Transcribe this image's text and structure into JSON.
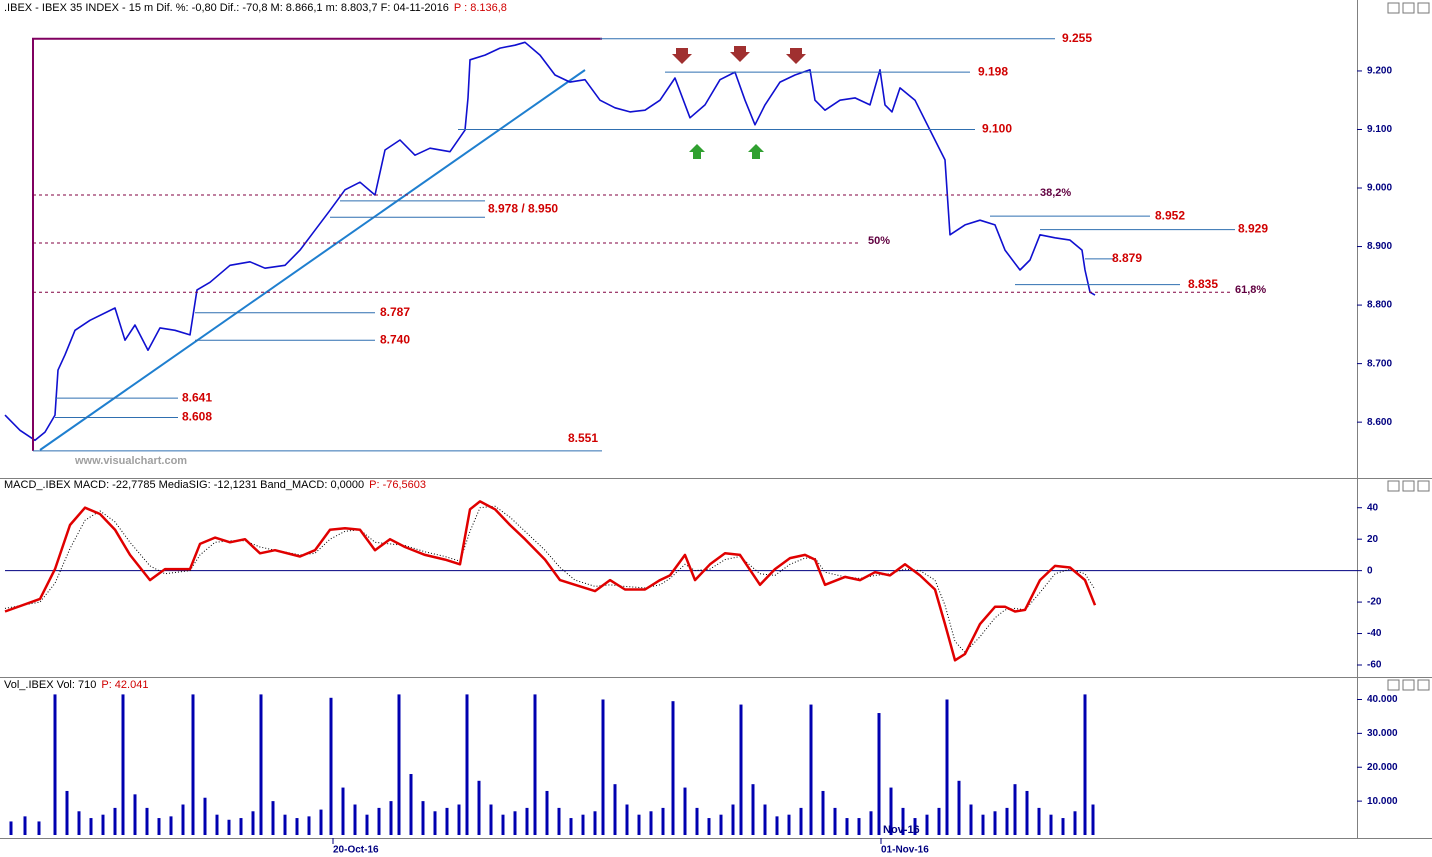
{
  "chart_data": [
    {
      "type": "line",
      "title": ".IBEX - IBEX 35 INDEX - 15 m  Dif. %: -0,80  Dif.: -70,8  M: 8.866,1  m: 8.803,7  F: 04-11-2016",
      "title_price": "P : 8.136,8",
      "watermark": "www.visualchart.com",
      "color": "#1010d0",
      "xlim": [
        0,
        676
      ],
      "ylim": [
        8508,
        9299
      ],
      "yticks": [
        {
          "value": 8600,
          "label": "8.600"
        },
        {
          "value": 8700,
          "label": "8.700"
        },
        {
          "value": 8800,
          "label": "8.800"
        },
        {
          "value": 8900,
          "label": "8.900"
        },
        {
          "value": 9000,
          "label": "9.000"
        },
        {
          "value": 9100,
          "label": "9.100"
        },
        {
          "value": 9200,
          "label": "9.200"
        }
      ],
      "x": [
        0,
        7.5,
        15,
        20,
        25,
        26.5,
        30,
        35,
        42.5,
        55,
        60,
        65,
        71.5,
        77.5,
        85,
        92.5,
        96,
        102.5,
        112.5,
        122.5,
        130,
        140,
        147.5,
        155,
        162.5,
        170,
        177.5,
        185,
        190,
        197.5,
        205,
        212.5,
        222.5,
        230,
        231.5,
        232.5,
        240,
        247.5,
        255,
        260,
        267.5,
        275,
        282.5,
        290,
        297.5,
        305,
        312.5,
        320,
        327.5,
        335,
        342.5,
        350,
        357.5,
        365,
        370,
        375,
        380,
        387.5,
        395,
        402.5,
        405,
        410,
        417.5,
        425,
        432.5,
        437.5,
        440,
        443.5,
        447.5,
        455,
        462.5,
        470,
        471.5,
        472.5,
        480,
        487.5,
        495,
        500,
        507.5,
        512.5,
        517.5,
        525,
        532.5,
        538.5,
        540,
        542.5,
        545
      ],
      "values": [
        8612,
        8586,
        8569,
        8583,
        8612,
        8689,
        8715,
        8757,
        8774,
        8795,
        8740,
        8766,
        8723,
        8761,
        8757,
        8749,
        8826,
        8839,
        8868,
        8874,
        8863,
        8868,
        8894,
        8928,
        8962,
        8997,
        9010,
        8988,
        9065,
        9082,
        9056,
        9068,
        9062,
        9099,
        9154,
        9219,
        9227,
        9239,
        9244,
        9249,
        9227,
        9193,
        9181,
        9185,
        9150,
        9137,
        9130,
        9133,
        9150,
        9188,
        9120,
        9142,
        9185,
        9198,
        9150,
        9108,
        9142,
        9181,
        9193,
        9202,
        9150,
        9133,
        9150,
        9154,
        9142,
        9202,
        9142,
        9130,
        9171,
        9150,
        9099,
        9048,
        8971,
        8920,
        8937,
        8945,
        8937,
        8894,
        8860,
        8877,
        8920,
        8915,
        8911,
        8894,
        8860,
        8822,
        8817
      ],
      "levels": [
        {
          "label": "9.255",
          "value": 9255
        },
        {
          "label": "9.198",
          "value": 9198
        },
        {
          "label": "9.100",
          "value": 9100
        },
        {
          "label": "8.978 / 8.950",
          "values": [
            8978,
            8950
          ]
        },
        {
          "label": "8.952",
          "value": 8952
        },
        {
          "label": "8.929",
          "value": 8929
        },
        {
          "label": "8.879",
          "value": 8879
        },
        {
          "label": "8.835",
          "value": 8835
        },
        {
          "label": "8.787",
          "value": 8787
        },
        {
          "label": "8.740",
          "value": 8740
        },
        {
          "label": "8.641",
          "value": 8641
        },
        {
          "label": "8.608",
          "value": 8608
        },
        {
          "label": "8.551",
          "value": 8551
        }
      ],
      "retracements": [
        {
          "label": "38,2%",
          "price": 8988
        },
        {
          "label": "50%",
          "price": 8906
        },
        {
          "label": "61,8%",
          "price": 8822
        }
      ]
    },
    {
      "type": "line",
      "title": "MACD_.IBEX MACD: -22,7785 MediaSIG: -12,1231 Band_MACD: 0,0000",
      "title_price": "P: -76,5603",
      "xlim": [
        0,
        676
      ],
      "ylim": [
        -67,
        50
      ],
      "yticks": [
        -60,
        -40,
        -20,
        0,
        20,
        40
      ],
      "zero_line": 0,
      "x": [
        0,
        17.5,
        25,
        32.5,
        40,
        47.5,
        55,
        62.5,
        72.5,
        80,
        92.5,
        97.5,
        105,
        112.5,
        120,
        127.5,
        135,
        147.5,
        155,
        162.5,
        170,
        177.5,
        185,
        192.5,
        200,
        210,
        220,
        227.5,
        232.5,
        237.5,
        245,
        252.5,
        260,
        270,
        277.5,
        285,
        295,
        302.5,
        310,
        320,
        327.5,
        332.5,
        340,
        345,
        352.5,
        360,
        367.5,
        377.5,
        385,
        392.5,
        400,
        405,
        410,
        420,
        427.5,
        435,
        442.5,
        450,
        457.5,
        465,
        470,
        475,
        480,
        487.5,
        495,
        500,
        505,
        510,
        517.5,
        525,
        532.5,
        540,
        545
      ],
      "series": [
        {
          "color": "#e00000",
          "line_style": "solid",
          "values": [
            -26,
            -18,
            1,
            29,
            40,
            36,
            26,
            10,
            -6,
            1,
            1,
            17,
            21,
            18,
            20,
            11,
            13,
            9,
            13,
            26,
            27,
            26,
            13,
            20,
            15,
            10,
            7,
            4,
            39,
            44,
            39,
            29,
            20,
            7,
            -6,
            -9,
            -13,
            -6,
            -12,
            -12,
            -6,
            -3,
            10,
            -6,
            4,
            11,
            10,
            -9,
            1,
            8,
            10,
            7,
            -9,
            -4,
            -6,
            -1,
            -3,
            4,
            -3,
            -12,
            -34,
            -57,
            -53,
            -34,
            -23,
            -23,
            -26,
            -25,
            -6,
            3,
            2,
            -6,
            -22
          ]
        },
        {
          "color": "#000000",
          "line_style": "dotted",
          "values": [
            -24,
            -20,
            -8,
            14,
            32,
            38,
            31,
            18,
            3,
            -2,
            0,
            10,
            18,
            19,
            19,
            15,
            13,
            10,
            11,
            20,
            25,
            26,
            18,
            17,
            16,
            12,
            9,
            6,
            25,
            40,
            41,
            34,
            25,
            13,
            2,
            -6,
            -10,
            -9,
            -10,
            -11,
            -9,
            -5,
            4,
            0,
            1,
            7,
            9,
            -2,
            -3,
            4,
            8,
            8,
            -1,
            -4,
            -5,
            -3,
            -2,
            1,
            0,
            -6,
            -22,
            -45,
            -52,
            -42,
            -30,
            -25,
            -24,
            -25,
            -14,
            -2,
            1,
            -2,
            -12
          ]
        }
      ]
    },
    {
      "type": "bar",
      "title": "Vol_.IBEX Vol: 710",
      "title_price": "P: 42.041",
      "annotations": [
        "Nov-16"
      ],
      "color": "#0000b0",
      "xlim": [
        0,
        676
      ],
      "ylim": [
        0,
        42800
      ],
      "yticks": [
        {
          "value": 10000,
          "label": "10.000"
        },
        {
          "value": 20000,
          "label": "20.000"
        },
        {
          "value": 30000,
          "label": "30.000"
        },
        {
          "value": 40000,
          "label": "40.000"
        }
      ],
      "xticks": [
        {
          "value": 164,
          "label": "20-Oct-16"
        },
        {
          "value": 438,
          "label": "01-Nov-16"
        }
      ],
      "x": [
        3,
        10,
        17,
        25,
        31,
        37,
        43,
        49,
        55,
        59,
        65,
        71,
        77,
        83,
        89,
        94,
        100,
        106,
        112,
        118,
        124,
        128,
        134,
        140,
        146,
        152,
        158,
        163,
        169,
        175,
        181,
        187,
        193,
        197,
        203,
        209,
        215,
        221,
        227,
        231,
        237,
        243,
        249,
        255,
        261,
        265,
        271,
        277,
        283,
        289,
        295,
        299,
        305,
        311,
        317,
        323,
        329,
        334,
        340,
        346,
        352,
        358,
        364,
        368,
        374,
        380,
        386,
        392,
        398,
        403,
        409,
        415,
        421,
        427,
        433,
        437,
        443,
        449,
        455,
        461,
        467,
        471,
        477,
        483,
        489,
        495,
        501,
        505,
        511,
        517,
        523,
        529,
        535,
        540,
        544
      ],
      "values": [
        4000,
        5500,
        4000,
        41500,
        13000,
        7000,
        5000,
        6000,
        8000,
        41500,
        12000,
        8000,
        5000,
        5500,
        9000,
        41500,
        11000,
        6000,
        4500,
        5000,
        7000,
        41500,
        10000,
        6000,
        5000,
        5500,
        7500,
        40500,
        14000,
        9000,
        6000,
        8000,
        10000,
        41500,
        18000,
        10000,
        7000,
        8000,
        9000,
        41500,
        16000,
        9000,
        6000,
        7000,
        8000,
        41500,
        13000,
        8000,
        5000,
        6000,
        7000,
        40000,
        15000,
        9000,
        6000,
        7000,
        8000,
        39500,
        14000,
        8000,
        5000,
        6000,
        9000,
        38500,
        15000,
        9000,
        5500,
        6000,
        8000,
        38500,
        13000,
        8000,
        5000,
        5000,
        7000,
        36000,
        14000,
        8000,
        5000,
        6000,
        8000,
        40000,
        16000,
        9000,
        6000,
        7000,
        8000,
        15000,
        13000,
        8000,
        6000,
        5000,
        7000,
        41500,
        9000
      ]
    }
  ]
}
